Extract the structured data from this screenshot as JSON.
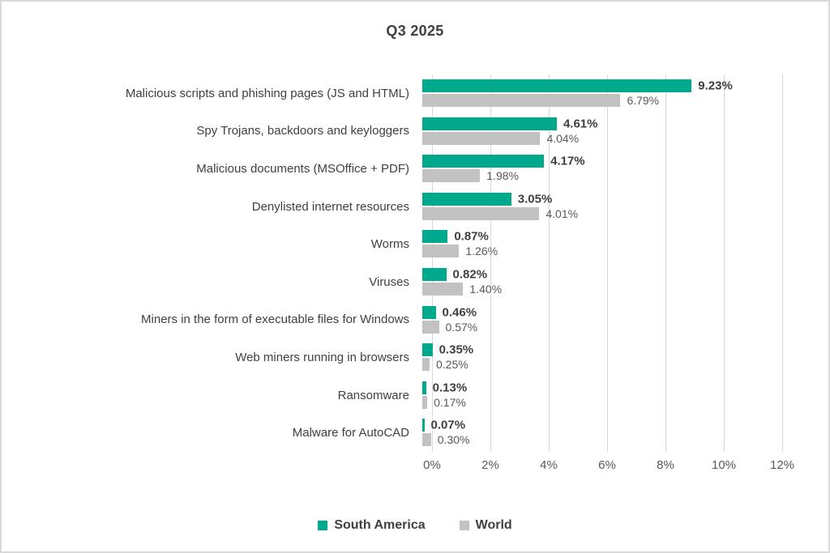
{
  "title": "Q3 2025",
  "colors": {
    "south_america": "#00a88c",
    "world": "#c2c2c2",
    "gridline": "#d9d9d9",
    "text_dark": "#404040",
    "text_gray": "#595959",
    "frame_border": "#d9d9d9"
  },
  "legend": [
    {
      "label": "South America",
      "color": "#00a88c"
    },
    {
      "label": "World",
      "color": "#c2c2c2"
    }
  ],
  "chart_data": {
    "type": "bar",
    "orientation": "horizontal",
    "title": "Q3 2025",
    "categories": [
      "Malicious scripts and phishing pages (JS and HTML)",
      "Spy Trojans, backdoors and keyloggers",
      "Malicious documents (MSOffice + PDF)",
      "Denylisted internet resources",
      "Worms",
      "Viruses",
      "Miners in the form of executable files for Windows",
      "Web miners running in browsers",
      "Ransomware",
      "Malware for AutoCAD"
    ],
    "series": [
      {
        "name": "South America",
        "color": "#00a88c",
        "values": [
          9.23,
          4.61,
          4.17,
          3.05,
          0.87,
          0.82,
          0.46,
          0.35,
          0.13,
          0.07
        ],
        "labels": [
          "9.23%",
          "4.61%",
          "4.17%",
          "3.05%",
          "0.87%",
          "0.82%",
          "0.46%",
          "0.35%",
          "0.13%",
          "0.07%"
        ]
      },
      {
        "name": "World",
        "color": "#c2c2c2",
        "values": [
          6.79,
          4.04,
          1.98,
          4.01,
          1.26,
          1.4,
          0.57,
          0.25,
          0.17,
          0.3
        ],
        "labels": [
          "6.79%",
          "4.04%",
          "1.98%",
          "4.01%",
          "1.26%",
          "1.40%",
          "0.57%",
          "0.25%",
          "0.17%",
          "0.30%"
        ]
      }
    ],
    "xlim": [
      0,
      12
    ],
    "x_ticks": [
      "0%",
      "2%",
      "4%",
      "6%",
      "8%",
      "10%",
      "12%"
    ],
    "grid": "vertical",
    "legend_position": "bottom"
  }
}
